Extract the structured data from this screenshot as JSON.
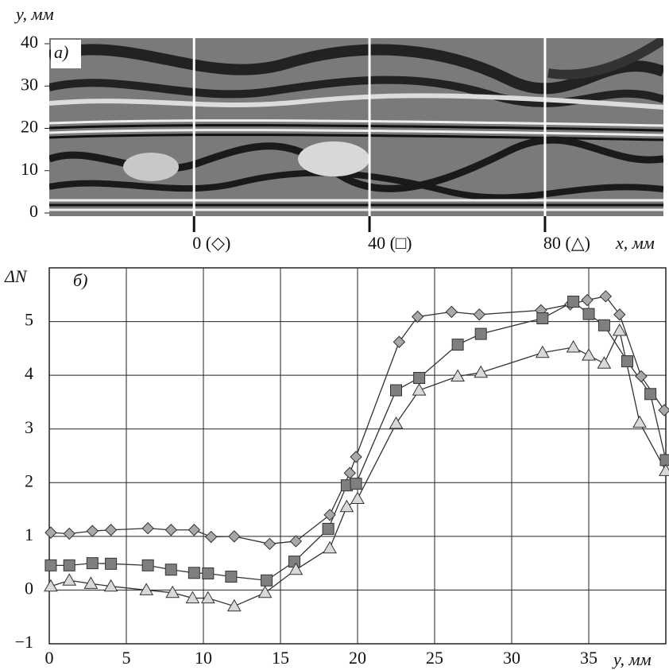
{
  "chart_data": [
    {
      "type": "image",
      "panel_label": "а)",
      "y_label": "y, мм",
      "x_label": "x, мм",
      "ylim": [
        0,
        40
      ],
      "yticks": [
        0,
        10,
        20,
        30,
        40
      ],
      "xlim": [
        -33,
        107
      ],
      "xticks": [
        {
          "value": 0,
          "label": "0 (◇)"
        },
        {
          "value": 40,
          "label": "40 (□)"
        },
        {
          "value": 80,
          "label": "80 (△)"
        }
      ]
    },
    {
      "type": "line",
      "panel_label": "б)",
      "y_label": "ΔN",
      "x_label": "y, мм",
      "xlim": [
        0,
        40
      ],
      "ylim": [
        -1,
        6
      ],
      "xticks": [
        0,
        5,
        10,
        15,
        20,
        25,
        30,
        35
      ],
      "yticks": [
        {
          "value": -1,
          "label": "−1"
        },
        0,
        1,
        2,
        3,
        4,
        5
      ],
      "grid": true,
      "series": [
        {
          "marker": "diamond",
          "color": "#a8a8a8",
          "x": [
            0.1,
            1.3,
            2.8,
            4.0,
            6.4,
            7.9,
            9.4,
            10.5,
            12.0,
            14.3,
            16.0,
            18.2,
            19.5,
            19.9,
            22.7,
            23.9,
            26.1,
            27.9,
            31.9,
            33.8,
            34.9,
            36.1,
            37.0,
            38.4,
            39.9
          ],
          "values": [
            1.07,
            1.05,
            1.1,
            1.12,
            1.15,
            1.12,
            1.12,
            0.99,
            1.0,
            0.86,
            0.91,
            1.4,
            2.18,
            2.48,
            4.62,
            5.09,
            5.18,
            5.13,
            5.21,
            5.32,
            5.4,
            5.47,
            5.13,
            3.98,
            3.35
          ]
        },
        {
          "marker": "square",
          "color": "#7f7f7f",
          "x": [
            0.1,
            1.3,
            2.8,
            4.0,
            6.4,
            7.9,
            9.4,
            10.3,
            11.8,
            14.1,
            15.9,
            18.1,
            19.3,
            19.9,
            22.5,
            24.0,
            26.5,
            28.0,
            32.0,
            34.0,
            35.0,
            36.0,
            37.5,
            39.0,
            40.0
          ],
          "values": [
            0.46,
            0.46,
            0.5,
            0.49,
            0.46,
            0.38,
            0.32,
            0.31,
            0.25,
            0.18,
            0.53,
            1.14,
            1.95,
            1.98,
            3.72,
            3.95,
            4.57,
            4.77,
            5.06,
            5.37,
            5.14,
            4.93,
            4.26,
            3.65,
            2.42
          ]
        },
        {
          "marker": "triangle",
          "color": "#d9d9d9",
          "x": [
            0.1,
            1.3,
            2.7,
            4.0,
            6.3,
            8.0,
            9.3,
            10.3,
            12.0,
            14.0,
            16.0,
            18.2,
            19.3,
            20.0,
            22.5,
            24.0,
            26.5,
            28.0,
            32.0,
            34.0,
            35.0,
            36.0,
            37.0,
            38.3,
            40.0
          ],
          "values": [
            0.07,
            0.18,
            0.12,
            0.07,
            0.0,
            -0.05,
            -0.15,
            -0.15,
            -0.3,
            -0.05,
            0.38,
            0.78,
            1.55,
            1.7,
            3.1,
            3.72,
            3.98,
            4.05,
            4.42,
            4.52,
            4.37,
            4.22,
            4.83,
            3.12,
            2.22
          ]
        }
      ]
    }
  ]
}
